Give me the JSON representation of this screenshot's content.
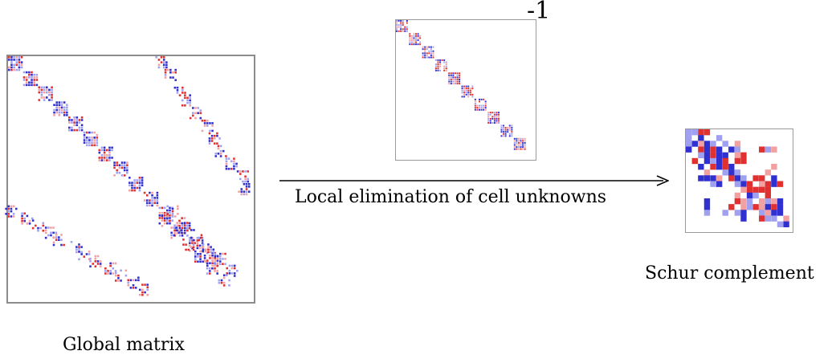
{
  "labels": {
    "global_matrix": "Global matrix",
    "schur_complement": "Schur complement",
    "arrow_caption": "Local elimination of cell unknowns",
    "inverse_superscript": "-1"
  },
  "colors": {
    "positive": "#e03030",
    "negative": "#3030d0",
    "light_positive": "#f2a0a0",
    "light_negative": "#a0a0f0"
  }
}
